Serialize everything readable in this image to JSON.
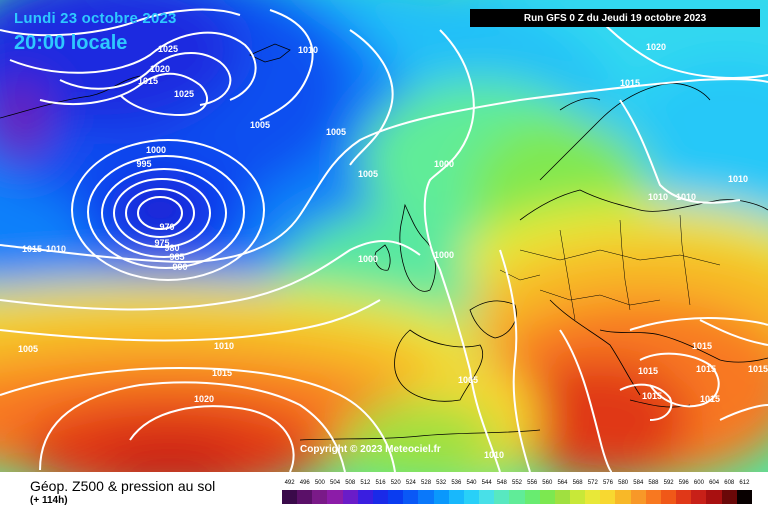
{
  "header": {
    "date_line": "Lundi 23 octobre 2023",
    "local_time": "20:00 locale",
    "run_info": "Run GFS 0 Z du Jeudi 19 octobre 2023"
  },
  "copyright": "Copyright © 2023 Meteociel.fr",
  "footer": {
    "title": "Géop. Z500 & pression au sol",
    "subtitle": "(+ 114h)"
  },
  "legend": {
    "labels": [
      "492",
      "496",
      "500",
      "504",
      "508",
      "512",
      "516",
      "520",
      "524",
      "528",
      "532",
      "536",
      "540",
      "544",
      "548",
      "552",
      "556",
      "560",
      "564",
      "568",
      "572",
      "576",
      "580",
      "584",
      "588",
      "592",
      "596",
      "600",
      "604",
      "608",
      "612"
    ],
    "colors": [
      "#3a0a4a",
      "#5a1068",
      "#7a1a88",
      "#8c1ca8",
      "#6a1cc8",
      "#3a1ee0",
      "#1a2ae8",
      "#0a3cf0",
      "#0a58f6",
      "#0a78fa",
      "#0a98fc",
      "#18b8fc",
      "#28d0f8",
      "#48e0e8",
      "#58e8c0",
      "#60ec98",
      "#68ec70",
      "#7ce850",
      "#a0e040",
      "#c8e838",
      "#e8e838",
      "#f8d830",
      "#f8b828",
      "#f89828",
      "#f87820",
      "#f05818",
      "#e03818",
      "#c82018",
      "#a81010",
      "#6a0808",
      "#080000"
    ]
  },
  "pressure_labels": [
    {
      "text": "1025"
    },
    {
      "text": "1020"
    },
    {
      "text": "1015"
    },
    {
      "text": "1025"
    },
    {
      "text": "1010"
    },
    {
      "text": "1005"
    },
    {
      "text": "1005"
    },
    {
      "text": "1000"
    },
    {
      "text": "995"
    },
    {
      "text": "970"
    },
    {
      "text": "975"
    },
    {
      "text": "980"
    },
    {
      "text": "985"
    },
    {
      "text": "990"
    },
    {
      "text": "1005"
    },
    {
      "text": "1000"
    },
    {
      "text": "1000"
    },
    {
      "text": "1000"
    },
    {
      "text": "1015"
    },
    {
      "text": "1010"
    },
    {
      "text": "1005"
    },
    {
      "text": "1010"
    },
    {
      "text": "1015"
    },
    {
      "text": "1020"
    },
    {
      "text": "1005"
    },
    {
      "text": "1010"
    },
    {
      "text": "1020"
    },
    {
      "text": "1015"
    },
    {
      "text": "1010"
    },
    {
      "text": "1010"
    },
    {
      "text": "1010"
    },
    {
      "text": "1015"
    },
    {
      "text": "1015"
    },
    {
      "text": "1015"
    },
    {
      "text": "1015"
    },
    {
      "text": "1015"
    },
    {
      "text": "1015"
    }
  ],
  "colors": {
    "header_text": "#2ec8ff",
    "isobar": "#ffffff",
    "coastline": "#000000"
  }
}
